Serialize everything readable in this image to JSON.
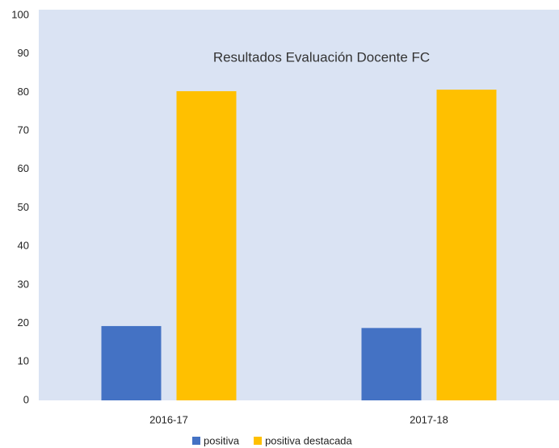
{
  "chart_data": {
    "type": "bar",
    "title": "Resultados Evaluación Docente FC",
    "categories": [
      "2016-17",
      "2017-18"
    ],
    "series": [
      {
        "name": "positiva",
        "color": "#4472c4",
        "values": [
          19.3,
          18.8
        ]
      },
      {
        "name": "positiva destacada",
        "color": "#ffc000",
        "values": [
          80.3,
          80.7
        ]
      }
    ],
    "ylim": [
      0,
      100
    ],
    "yticks": [
      0,
      10,
      20,
      30,
      40,
      50,
      60,
      70,
      80,
      90,
      100
    ],
    "grid": false,
    "legend": "bottom",
    "plot_background": "#dae3f3"
  }
}
